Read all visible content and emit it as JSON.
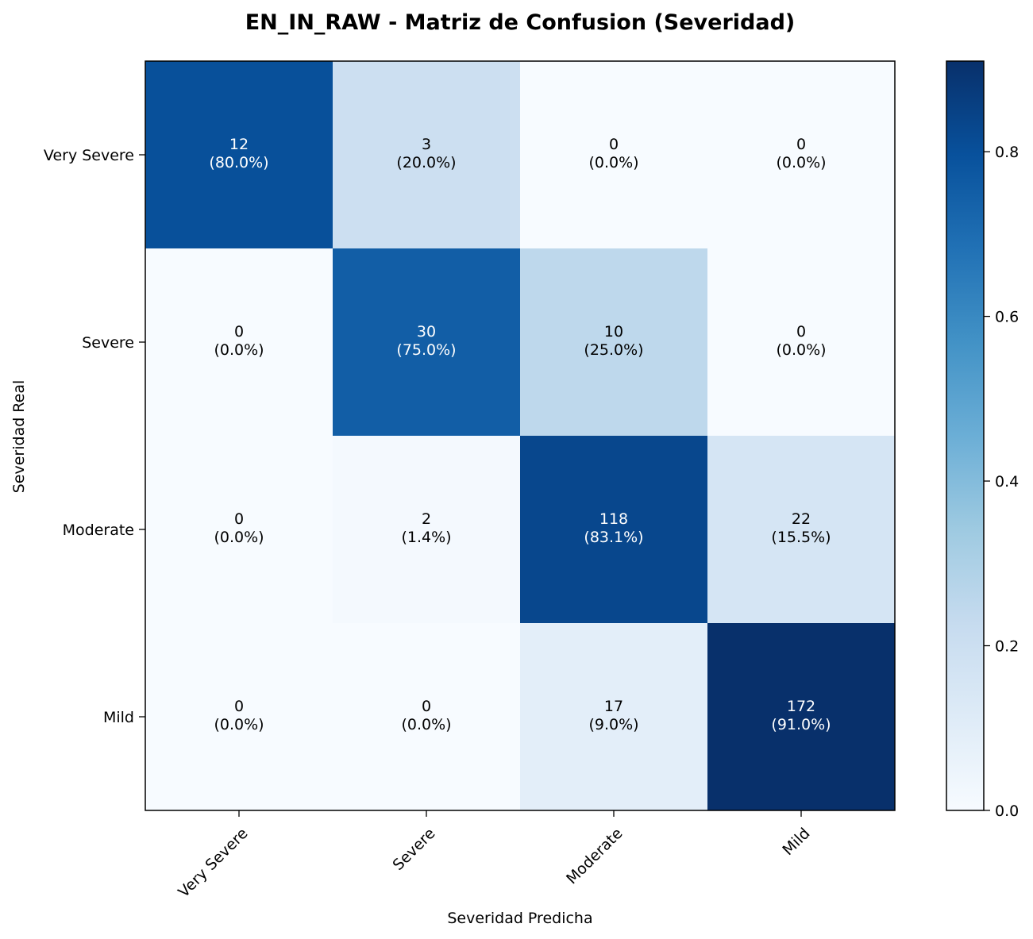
{
  "chart_data": {
    "type": "heatmap",
    "title": "EN_IN_RAW - Matriz de Confusion (Severidad)",
    "xlabel": "Severidad Predicha",
    "ylabel": "Severidad Real",
    "x_categories": [
      "Very Severe",
      "Severe",
      "Moderate",
      "Mild"
    ],
    "y_categories": [
      "Very Severe",
      "Severe",
      "Moderate",
      "Mild"
    ],
    "counts": [
      [
        12,
        3,
        0,
        0
      ],
      [
        0,
        30,
        10,
        0
      ],
      [
        0,
        2,
        118,
        22
      ],
      [
        0,
        0,
        17,
        172
      ]
    ],
    "percent_labels": [
      [
        "(80.0%)",
        "(20.0%)",
        "(0.0%)",
        "(0.0%)"
      ],
      [
        "(0.0%)",
        "(75.0%)",
        "(25.0%)",
        "(0.0%)"
      ],
      [
        "(0.0%)",
        "(1.4%)",
        "(83.1%)",
        "(15.5%)"
      ],
      [
        "(0.0%)",
        "(0.0%)",
        "(9.0%)",
        "(91.0%)"
      ]
    ],
    "normalized": [
      [
        0.8,
        0.2,
        0.0,
        0.0
      ],
      [
        0.0,
        0.75,
        0.25,
        0.0
      ],
      [
        0.0,
        0.014,
        0.831,
        0.155
      ],
      [
        0.0,
        0.0,
        0.09,
        0.91
      ]
    ],
    "colorbar": {
      "min": 0.0,
      "max": 0.91,
      "ticks": [
        0.0,
        0.2,
        0.4,
        0.6,
        0.8
      ],
      "tick_labels": [
        "0.0",
        "0.2",
        "0.4",
        "0.6",
        "0.8"
      ],
      "colormap": "Blues"
    },
    "grid": false
  }
}
